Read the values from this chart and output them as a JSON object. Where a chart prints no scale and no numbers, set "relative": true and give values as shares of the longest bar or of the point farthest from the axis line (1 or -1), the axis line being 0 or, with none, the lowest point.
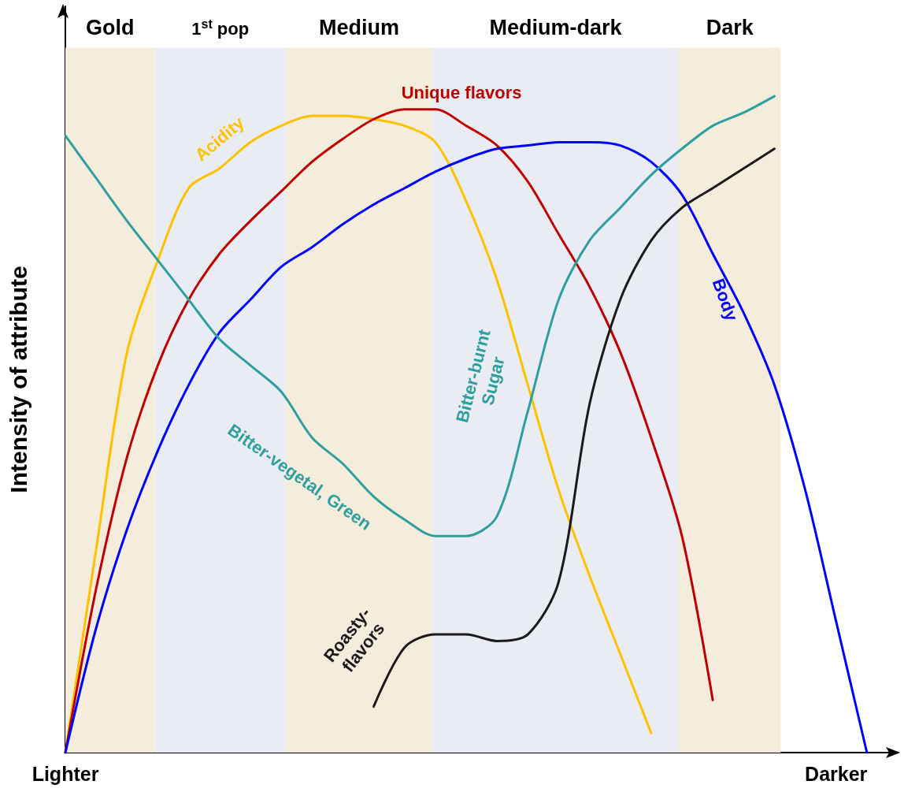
{
  "chart_data": {
    "type": "line",
    "relative": true,
    "ylabel": "Intensity of attribute",
    "categories": [
      "Lighter",
      null,
      null,
      null,
      null,
      null,
      null,
      null,
      null,
      null,
      null,
      null,
      null,
      null,
      null,
      null,
      null,
      null,
      null,
      null,
      null,
      null,
      null,
      null,
      null,
      "Darker",
      null,
      null
    ],
    "grid": false,
    "legend": false,
    "annotations": [
      "Gold",
      "1$^{st}$ pop",
      "Medium",
      "Medium-dark",
      "Dark",
      "Bitter-burnt Sugar"
    ],
    "series": [
      {
        "name": "Acidity",
        "color": "#ffc000",
        "values": [
          0,
          0.31,
          0.61,
          0.75,
          0.86,
          0.89,
          0.93,
          0.955,
          0.97,
          0.97,
          0.965,
          0.955,
          0.93,
          0.84,
          0.72,
          0.56,
          0.4,
          0.27,
          0.15,
          0.03,
          null,
          null,
          null,
          null,
          null,
          null,
          null,
          null
        ]
      },
      {
        "name": "Unique flavors",
        "color": "#c00000",
        "values": [
          0,
          0.25,
          0.45,
          0.59,
          0.69,
          0.76,
          0.81,
          0.855,
          0.9,
          0.935,
          0.965,
          0.98,
          0.98,
          0.955,
          0.925,
          0.87,
          0.79,
          0.71,
          0.61,
          0.48,
          0.33,
          0.08,
          null,
          null,
          null,
          null,
          null,
          null
        ]
      },
      {
        "name": "Body",
        "color": "#0000ff",
        "values": [
          0,
          0.19,
          0.34,
          0.46,
          0.56,
          0.64,
          0.69,
          0.74,
          0.77,
          0.805,
          0.835,
          0.86,
          0.885,
          0.905,
          0.92,
          0.925,
          0.93,
          0.93,
          0.925,
          0.9,
          0.85,
          0.76,
          0.67,
          0.56,
          0.4,
          0.2,
          0,
          null
        ]
      },
      {
        "name": "Bitter-vegetal, Green",
        "color": "#2f9e9e",
        "values": [
          0.94,
          0.875,
          0.81,
          0.75,
          0.69,
          0.63,
          0.59,
          0.55,
          0.48,
          0.44,
          0.39,
          0.355,
          0.33,
          0.33,
          0.36,
          0.52,
          0.69,
          0.78,
          0.83,
          0.88,
          0.92,
          0.955,
          0.975,
          1,
          null,
          null,
          null,
          null
        ]
      },
      {
        "name": "Roasty-flavors",
        "color": "#1a1a1a",
        "values": [
          null,
          null,
          null,
          null,
          null,
          null,
          null,
          null,
          null,
          null,
          0.07,
          0.16,
          0.18,
          0.18,
          0.17,
          0.18,
          0.26,
          0.53,
          0.69,
          0.78,
          0.83,
          0.86,
          0.89,
          0.92,
          null,
          null,
          null,
          null
        ]
      }
    ]
  }
}
